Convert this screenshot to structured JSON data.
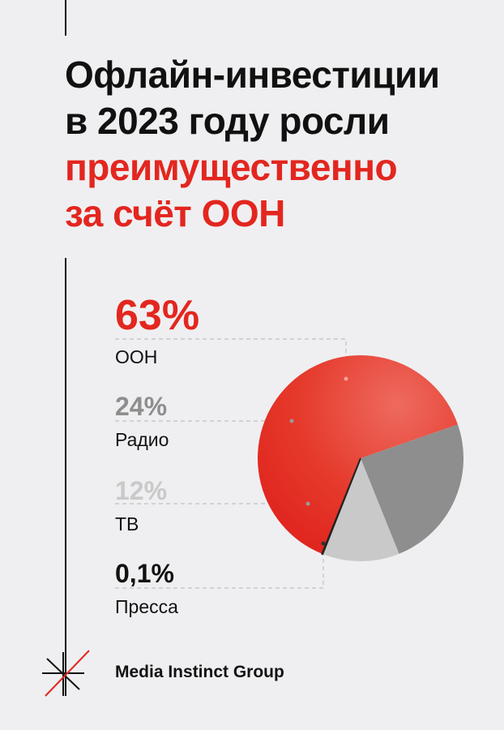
{
  "title_lines": [
    "Офлайн-инвестиции",
    "в 2023 году росли",
    "преимущественно",
    "за счёт ООН"
  ],
  "colors": {
    "accent": "#e3261f",
    "text": "#111111",
    "background": "#efeff1"
  },
  "chart_data": {
    "type": "pie",
    "slices": [
      {
        "label": "ООН",
        "value": 63,
        "value_label": "63%",
        "color": "#e3261f"
      },
      {
        "label": "Радио",
        "value": 24,
        "value_label": "24%",
        "color": "#8e8e8e"
      },
      {
        "label": "ТВ",
        "value": 12,
        "value_label": "12%",
        "color": "#c9c9c9"
      },
      {
        "label": "Пресса",
        "value": 0.1,
        "value_label": "0,1%",
        "color": "#222222"
      }
    ]
  },
  "brand": {
    "name": "Media Instinct Group",
    "logo_icon": "asterisk-logo-icon"
  }
}
